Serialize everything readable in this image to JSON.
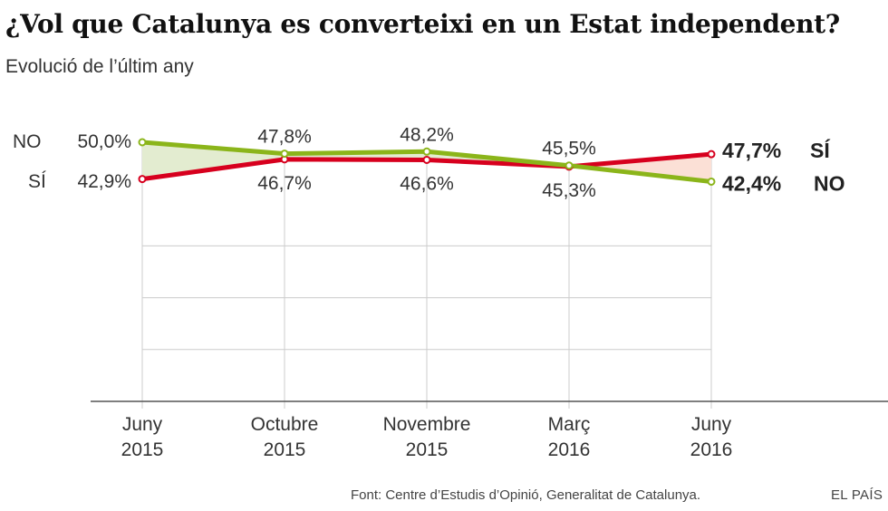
{
  "title": "¿Vol que Catalunya es converteixi en un Estat independent?",
  "subtitle": "Evolució de l’últim any",
  "source": "Font: Centre d’Estudis d’Opinió, Generalitat de Catalunya.",
  "brand": "EL PAÍS",
  "colors": {
    "si": "#d7001e",
    "no": "#8bb51a",
    "fill_no_lead": "#e3ecd0",
    "fill_si_lead": "#fbe0d6",
    "grid": "#cccccc",
    "axis": "#555555",
    "text": "#333333"
  },
  "chart_data": {
    "type": "line",
    "categories": [
      {
        "line1": "Juny",
        "line2": "2015"
      },
      {
        "line1": "Octubre",
        "line2": "2015"
      },
      {
        "line1": "Novembre",
        "line2": "2015"
      },
      {
        "line1": "Març",
        "line2": "2016"
      },
      {
        "line1": "Juny",
        "line2": "2016"
      }
    ],
    "ylim": [
      0,
      50
    ],
    "grid": true,
    "series": [
      {
        "key": "no",
        "name": "NO",
        "values": [
          50.0,
          47.8,
          48.2,
          45.5,
          42.4
        ],
        "labels": [
          "50,0%",
          "47,8%",
          "48,2%",
          "45,5%",
          "42,4%"
        ]
      },
      {
        "key": "si",
        "name": "SÍ",
        "values": [
          42.9,
          46.7,
          46.6,
          45.3,
          47.7
        ],
        "labels": [
          "42,9%",
          "46,7%",
          "46,6%",
          "45,3%",
          "47,7%"
        ]
      }
    ]
  }
}
